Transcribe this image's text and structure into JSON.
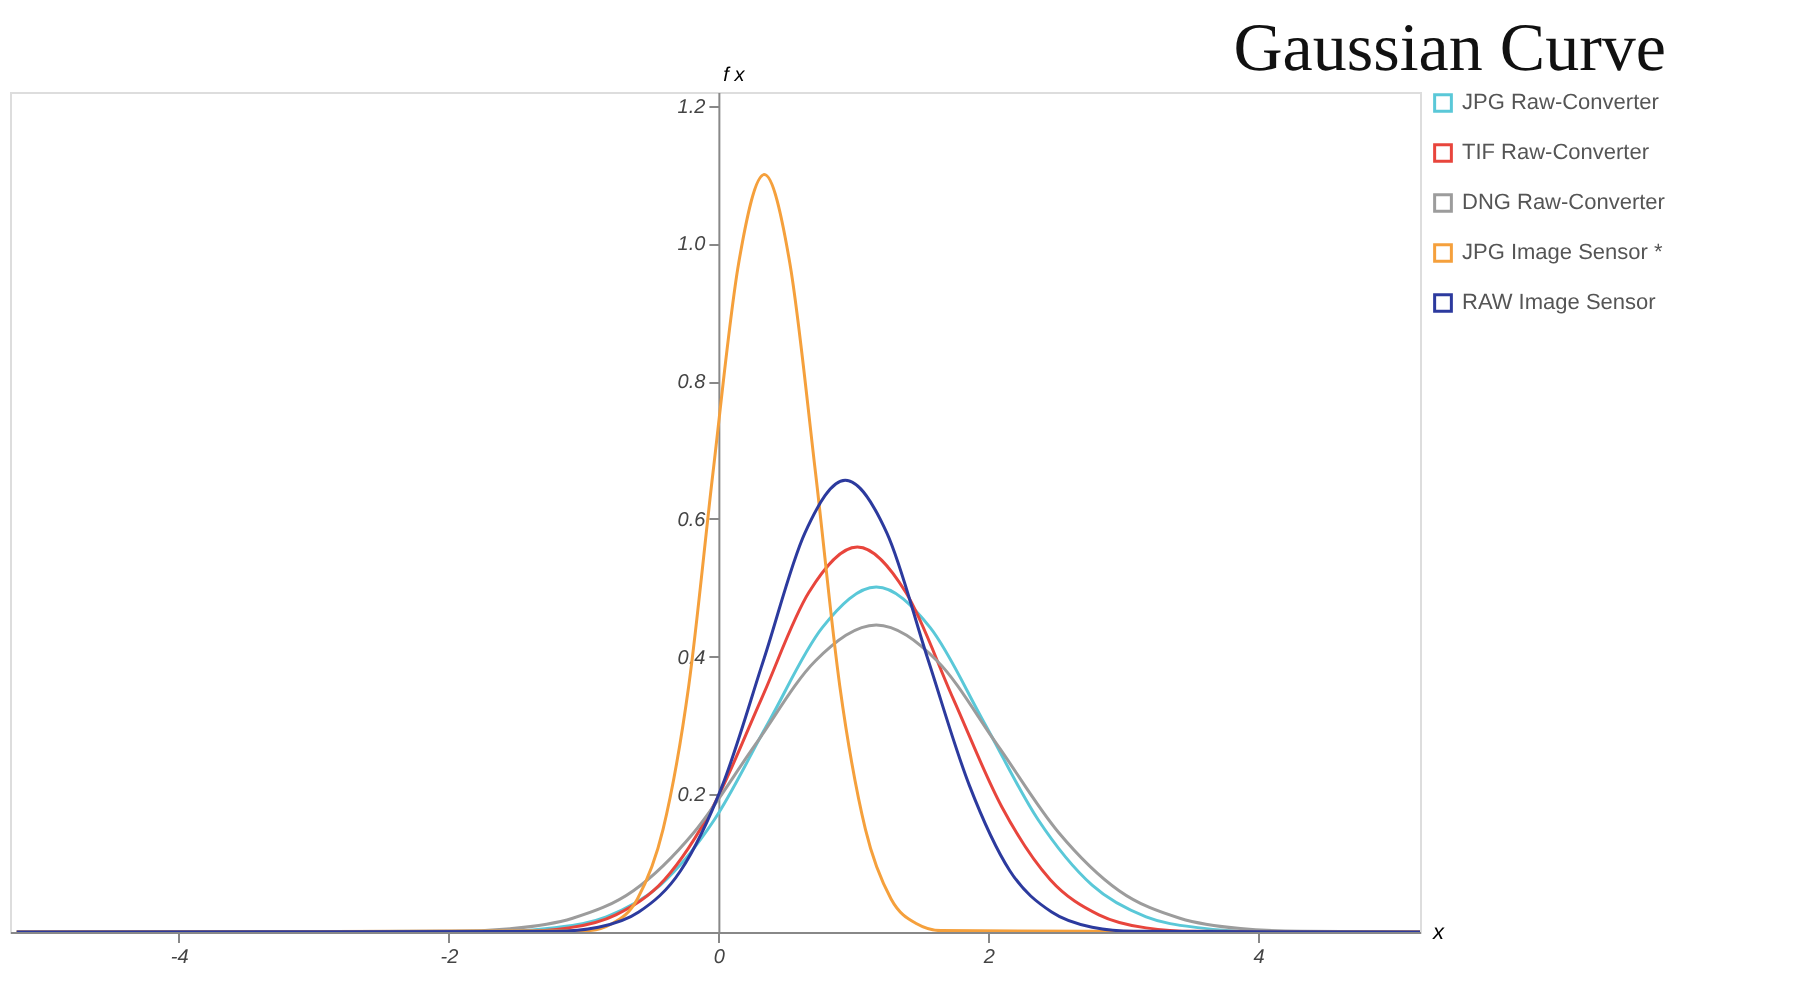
{
  "chart_data": {
    "type": "line",
    "title": "Gaussian Curve",
    "xlabel": "x",
    "ylabel": "f x",
    "xlim": [
      -5.25,
      5.2
    ],
    "xticks": [
      -4,
      -2,
      0,
      2,
      4
    ],
    "ylim": [
      0,
      1.22
    ],
    "yticks": [
      0.2,
      0.4,
      0.6,
      0.8,
      {
        "value": 1,
        "label": "1.0"
      },
      1.2
    ],
    "legend": "top right",
    "grid": false,
    "line_style": "solid",
    "marker": "none",
    "series": [
      {
        "name": "JPG Raw-Converter",
        "color": "#5ac8d8",
        "x": [
          -5.2,
          -1.63,
          -1.23,
          -0.83,
          -0.43,
          -0.03,
          0.37,
          0.77,
          1.17,
          1.57,
          1.97,
          2.37,
          2.77,
          3.17,
          3.57,
          3.97,
          5.2
        ],
        "values": [
          0,
          0.001,
          0.006,
          0.022,
          0.068,
          0.163,
          0.304,
          0.442,
          0.501,
          0.442,
          0.304,
          0.163,
          0.068,
          0.022,
          0.006,
          0.001,
          0
        ]
      },
      {
        "name": "TIF Raw-Converter",
        "color": "#e8453c",
        "x": [
          -5.2,
          -1.47,
          -1.11,
          -0.76,
          -0.4,
          -0.04,
          0.32,
          0.67,
          1.03,
          1.39,
          1.74,
          2.1,
          2.46,
          2.82,
          3.17,
          3.53,
          5.2
        ],
        "values": [
          0,
          0.001,
          0.006,
          0.025,
          0.076,
          0.182,
          0.339,
          0.493,
          0.559,
          0.493,
          0.339,
          0.182,
          0.076,
          0.025,
          0.006,
          0.001,
          0
        ]
      },
      {
        "name": "DNG Raw-Converter",
        "color": "#9c9c9c",
        "x": [
          -5.2,
          -1.98,
          -1.53,
          -1.08,
          -0.63,
          -0.18,
          0.27,
          0.72,
          1.17,
          1.62,
          2.07,
          2.52,
          2.97,
          3.42,
          3.87,
          4.32,
          5.2
        ],
        "values": [
          0,
          0.001,
          0.005,
          0.02,
          0.06,
          0.145,
          0.271,
          0.394,
          0.446,
          0.394,
          0.271,
          0.145,
          0.06,
          0.02,
          0.005,
          0.001,
          0
        ]
      },
      {
        "name": "JPG Image Sensor *",
        "color": "#f5a03c",
        "x": [
          -5.2,
          -0.97,
          -0.79,
          -0.6,
          -0.41,
          -0.22,
          -0.04,
          0.15,
          0.34,
          0.53,
          0.72,
          0.9,
          1.09,
          1.28,
          1.47,
          1.65,
          5.2
        ],
        "values": [
          0,
          0.002,
          0.012,
          0.048,
          0.149,
          0.357,
          0.667,
          0.971,
          1.1,
          0.971,
          0.667,
          0.357,
          0.149,
          0.048,
          0.012,
          0.002,
          0
        ]
      },
      {
        "name": "RAW Image Sensor",
        "color": "#2c3a9e",
        "x": [
          -5.2,
          -1.2,
          -0.89,
          -0.59,
          -0.28,
          0.03,
          0.34,
          0.64,
          0.94,
          1.25,
          1.55,
          1.86,
          2.16,
          2.47,
          2.77,
          3.08,
          5.2
        ],
        "values": [
          0,
          0.001,
          0.007,
          0.029,
          0.089,
          0.213,
          0.398,
          0.579,
          0.656,
          0.579,
          0.398,
          0.213,
          0.089,
          0.029,
          0.007,
          0.001,
          0
        ]
      }
    ]
  }
}
